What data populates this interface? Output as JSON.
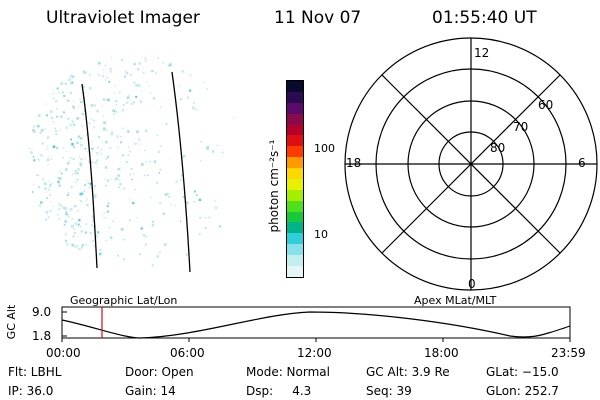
{
  "header": {
    "title": "Ultraviolet Imager",
    "date": "11 Nov 07",
    "time": "01:55:40 UT"
  },
  "colorbar": {
    "unit_label": "photon cm⁻²s⁻¹",
    "ticks": [
      "100",
      "10"
    ],
    "colors": [
      "#0a0a30",
      "#2a0a50",
      "#5a0a6a",
      "#8a0a4a",
      "#b4002a",
      "#dc1010",
      "#ff3a00",
      "#ff9a00",
      "#ffd700",
      "#e6f200",
      "#a6ee00",
      "#4ee01a",
      "#18c83a",
      "#00b48a",
      "#2ecfd8",
      "#86e2ea",
      "#c2eef0",
      "#e6f6f6"
    ]
  },
  "polar": {
    "mlt_labels": {
      "top": "12",
      "bottom": "0",
      "left": "18",
      "right": "6"
    },
    "lat_labels": [
      "60",
      "70",
      "80"
    ]
  },
  "timeline": {
    "left_label": "Geographic Lat/Lon",
    "right_label": "Apex MLat/MLT",
    "y_axis_label": "GC Alt",
    "y_ticks": [
      "9.0",
      "1.8"
    ],
    "x_ticks": [
      "00:00",
      "06:00",
      "12:00",
      "18:00",
      "23:59"
    ]
  },
  "status": {
    "flt": "Flt: LBHL",
    "ip": "IP: 36.0",
    "door": "Door: Open",
    "gain": "Gain: 14",
    "mode": "Mode: Normal",
    "dsp": "Dsp:     4.3",
    "gcalt": "GC Alt: 3.9 Re",
    "seq": "Seq: 39",
    "glat": "GLat: −15.0",
    "glon": "GLon: 252.7"
  },
  "colors": {
    "speckle": "#9fdfe2",
    "speckle_strong": "#4cc6cf",
    "time_marker": "#d62020"
  }
}
